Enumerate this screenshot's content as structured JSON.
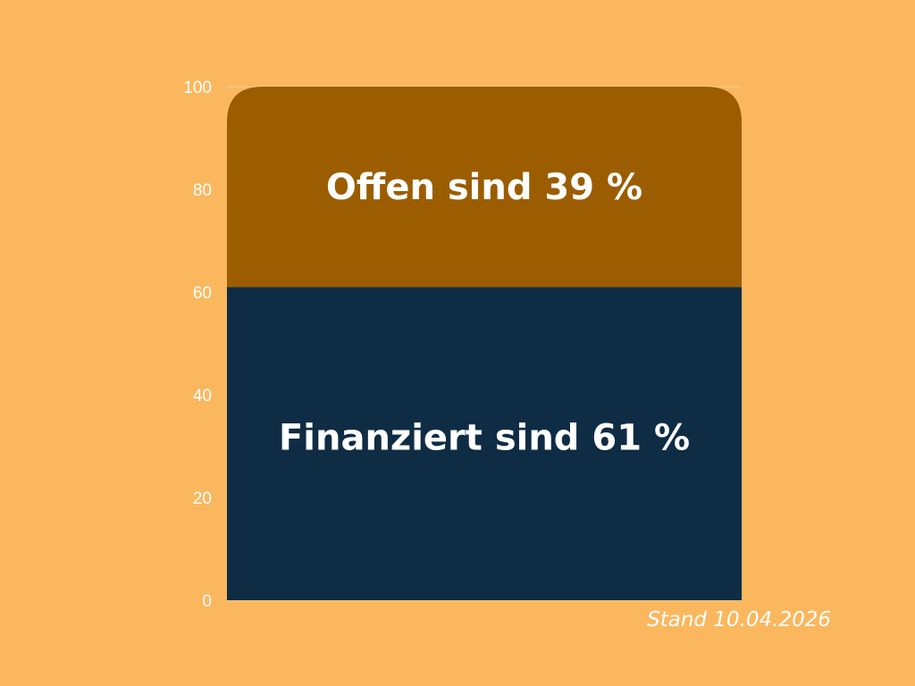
{
  "colors": {
    "background": "#FAB75E",
    "gridline": "#FFFFFF",
    "tick_text": "#FFFFFF",
    "label_text": "#FFFFFF"
  },
  "chart_data": {
    "type": "bar",
    "stacked": true,
    "title": "",
    "xlabel": "",
    "ylabel": "",
    "ylim": [
      0,
      100
    ],
    "yticks": [
      "0",
      "20",
      "40",
      "60",
      "80",
      "100"
    ],
    "grid": true,
    "legend": "none",
    "series": [
      {
        "value": 61,
        "color": "#0F2C45",
        "label": "Finanziert sind 61 %"
      },
      {
        "value": 39,
        "color": "#9B5D00",
        "label": "Offen sind 39 %"
      }
    ]
  },
  "footnote": "Stand 10.04.2026"
}
